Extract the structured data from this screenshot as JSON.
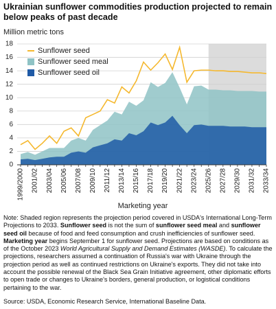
{
  "chart_data": {
    "type": "area",
    "title": "Ukrainian sunflower commodities production projected to remain below peaks of past decade",
    "y_label": "Million metric tons",
    "x_label": "Marketing year",
    "categories": [
      "1999/2000",
      null,
      "2001/02",
      null,
      "2003/04",
      null,
      "2005/06",
      null,
      "2007/08",
      null,
      "2009/10",
      null,
      "2011/12",
      null,
      "2013/14",
      null,
      "2015/16",
      null,
      "2017/18",
      null,
      "2019/20",
      null,
      "2021/22",
      null,
      "2023/24",
      null,
      "2025/26",
      null,
      "2027/28",
      null,
      "2029/30",
      null,
      "2031/32",
      null,
      "2033/34"
    ],
    "shaded_from": "2025/26",
    "shade_color": "#dcdcdc",
    "ylim": [
      0,
      18
    ],
    "yticks": [
      0,
      2,
      4,
      6,
      8,
      10,
      12,
      14,
      16,
      18
    ],
    "grid": true,
    "legend": "top-left",
    "series": [
      {
        "name": "Sunflower seed",
        "color": "#f5b82e",
        "style": "line",
        "values": [
          3.0,
          3.6,
          2.3,
          3.2,
          4.3,
          3.2,
          5.0,
          5.5,
          4.3,
          7.0,
          7.5,
          8.0,
          9.7,
          9.2,
          11.6,
          10.7,
          12.5,
          15.3,
          14.1,
          15.2,
          16.5,
          14.2,
          17.5,
          12.3,
          14.0,
          14.1,
          14.1,
          14.0,
          14.0,
          13.9,
          13.9,
          13.8,
          13.7,
          13.7,
          13.6
        ]
      },
      {
        "name": "Sunflower seed meal",
        "color": "#8fc3c5",
        "style": "area",
        "values": [
          1.6,
          1.9,
          1.5,
          2.0,
          2.5,
          2.5,
          2.5,
          3.6,
          4.0,
          3.6,
          5.2,
          5.9,
          6.6,
          7.9,
          7.5,
          9.4,
          8.8,
          9.6,
          12.3,
          11.6,
          12.2,
          13.8,
          11.5,
          9.0,
          11.7,
          11.8,
          11.2,
          11.2,
          11.1,
          11.1,
          11.0,
          11.0,
          11.0,
          10.9,
          10.9
        ]
      },
      {
        "name": "Sunflower seed oil",
        "color": "#1f5aa6",
        "style": "area",
        "values": [
          0.8,
          0.9,
          0.7,
          0.9,
          1.1,
          1.2,
          1.2,
          1.8,
          2.0,
          1.8,
          2.6,
          2.9,
          3.2,
          3.8,
          3.6,
          4.7,
          4.4,
          5.0,
          6.3,
          5.9,
          6.3,
          7.3,
          5.9,
          4.7,
          5.9,
          6.0,
          5.8,
          5.8,
          5.8,
          5.7,
          5.7,
          5.7,
          5.6,
          5.6,
          5.6
        ]
      }
    ],
    "note": [
      "Note: Shaded region represents the projection period covered in USDA's International Long-Term Projections to 2033. ",
      "Sunflower seed",
      " is not the sum of ",
      "sunflower seed meal",
      " and ",
      "sunflower seed oil",
      " because of food and feed consumption and crush inefficiencies of sunflower seed. ",
      "Marketing year",
      " begins September 1 for sunflower seed. Projections are based on conditions as of the October 2023 ",
      "World Agricultural Supply and Demand Estimates (WASDE)",
      ". To calculate the projections, researchers assumed a continuation of Russia's war with Ukraine through the projection period as well as continued restrictions on Ukraine's exports. They did not take into account the possible renewal of the Black Sea Grain Initiative agreement, other diplomatic efforts to open trade or changes to Ukraine's borders, general production, or logistical conditions pertaining to the war."
    ],
    "source": "Source: USDA, Economic Research Service, International Baseline Data."
  }
}
